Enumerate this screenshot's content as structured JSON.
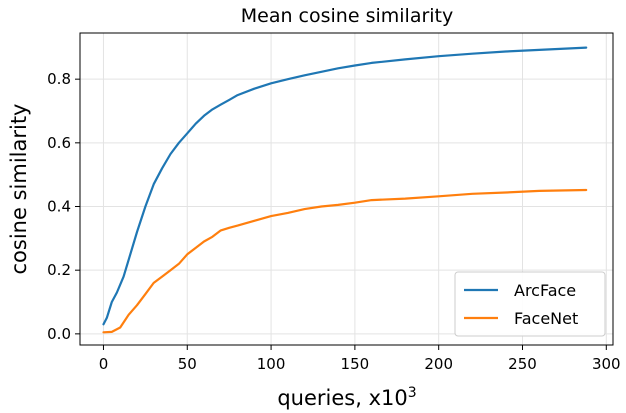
{
  "chart_data": {
    "type": "line",
    "title": "Mean cosine similarity",
    "xlabel": "queries, x10",
    "xlabel_superscript": "3",
    "ylabel": "cosine similarity",
    "xlim": [
      -14,
      304
    ],
    "ylim": [
      -0.035,
      0.945
    ],
    "xticks": [
      0,
      50,
      100,
      150,
      200,
      250,
      300
    ],
    "yticks": [
      0.0,
      0.2,
      0.4,
      0.6,
      0.8
    ],
    "xtick_labels": [
      "0",
      "50",
      "100",
      "150",
      "200",
      "250",
      "300"
    ],
    "ytick_labels": [
      "0.0",
      "0.2",
      "0.4",
      "0.6",
      "0.8"
    ],
    "grid": true,
    "legend_position": "bottom-right",
    "series": [
      {
        "name": "ArcFace",
        "color": "#1f77b4",
        "x": [
          0,
          2,
          5,
          8,
          12,
          16,
          20,
          25,
          30,
          35,
          40,
          45,
          50,
          55,
          60,
          65,
          70,
          75,
          80,
          90,
          100,
          110,
          120,
          130,
          140,
          150,
          160,
          180,
          200,
          220,
          240,
          260,
          288
        ],
        "y": [
          0.03,
          0.05,
          0.1,
          0.13,
          0.18,
          0.25,
          0.32,
          0.4,
          0.47,
          0.52,
          0.565,
          0.6,
          0.63,
          0.66,
          0.685,
          0.705,
          0.72,
          0.735,
          0.75,
          0.77,
          0.787,
          0.8,
          0.812,
          0.823,
          0.834,
          0.843,
          0.851,
          0.862,
          0.872,
          0.88,
          0.887,
          0.892,
          0.899
        ]
      },
      {
        "name": "FaceNet",
        "color": "#ff7f0e",
        "x": [
          0,
          5,
          10,
          15,
          20,
          25,
          30,
          35,
          40,
          45,
          50,
          55,
          60,
          65,
          70,
          75,
          80,
          90,
          100,
          110,
          120,
          130,
          140,
          150,
          160,
          180,
          200,
          220,
          240,
          260,
          288
        ],
        "y": [
          0.005,
          0.006,
          0.02,
          0.06,
          0.09,
          0.125,
          0.16,
          0.18,
          0.2,
          0.22,
          0.25,
          0.27,
          0.29,
          0.305,
          0.325,
          0.333,
          0.34,
          0.355,
          0.37,
          0.38,
          0.392,
          0.4,
          0.405,
          0.412,
          0.42,
          0.425,
          0.432,
          0.44,
          0.444,
          0.449,
          0.452
        ]
      }
    ]
  }
}
